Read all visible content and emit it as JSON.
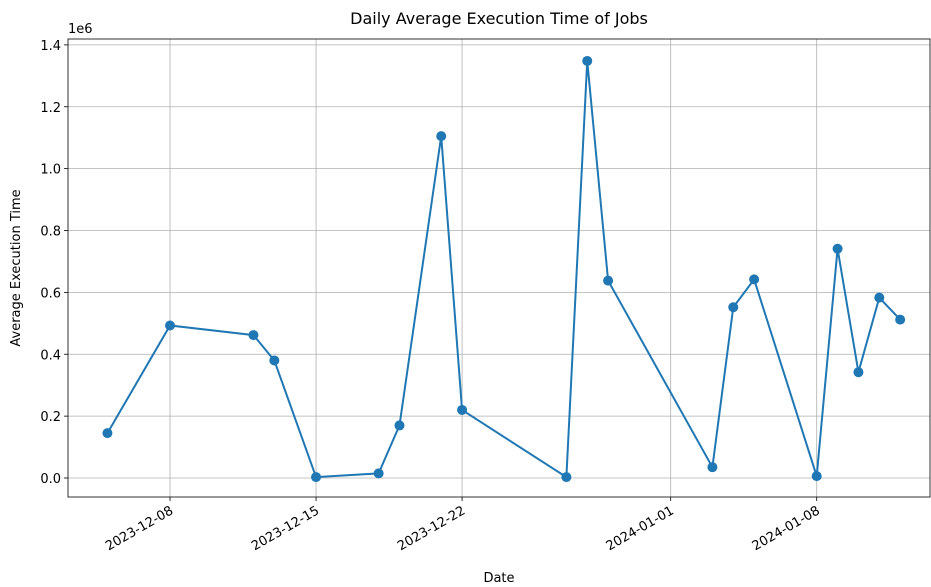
{
  "chart_data": {
    "type": "line",
    "title": "Daily Average Execution Time of Jobs",
    "xlabel": "Date",
    "ylabel": "Average Execution Time",
    "y_offset_label": "1e6",
    "x": [
      "2023-12-05",
      "2023-12-08",
      "2023-12-12",
      "2023-12-13",
      "2023-12-15",
      "2023-12-18",
      "2023-12-19",
      "2023-12-21",
      "2023-12-22",
      "2023-12-27",
      "2023-12-28",
      "2023-12-29",
      "2024-01-03",
      "2024-01-04",
      "2024-01-05",
      "2024-01-08",
      "2024-01-09",
      "2024-01-10",
      "2024-01-11",
      "2024-01-12"
    ],
    "series": [
      {
        "name": "Average Execution Time",
        "color": "#1f77b4",
        "values": [
          145000,
          493000,
          462000,
          380000,
          3000,
          15000,
          170000,
          1105000,
          220000,
          3000,
          1348000,
          638000,
          35000,
          552000,
          642000,
          6000,
          741000,
          342000,
          583000,
          512000
        ]
      }
    ],
    "xlim": [
      "2023-12-03T02:38:00Z",
      "2024-01-13T10:20:00Z"
    ],
    "xticks": [
      "2023-12-08",
      "2023-12-15",
      "2023-12-22",
      "2024-01-01",
      "2024-01-08"
    ],
    "ylim": [
      -61400,
      1419000
    ],
    "yticks": [
      {
        "value": 0,
        "label": "0.0"
      },
      {
        "value": 200000,
        "label": "0.2"
      },
      {
        "value": 400000,
        "label": "0.4"
      },
      {
        "value": 600000,
        "label": "0.6"
      },
      {
        "value": 800000,
        "label": "0.8"
      },
      {
        "value": 1000000,
        "label": "1.0"
      },
      {
        "value": 1200000,
        "label": "1.2"
      },
      {
        "value": 1400000,
        "label": "1.4"
      }
    ],
    "grid": true
  }
}
